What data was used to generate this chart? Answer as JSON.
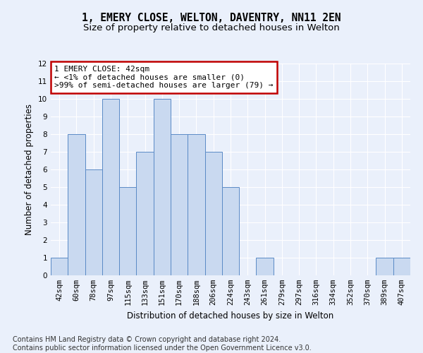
{
  "title_line1": "1, EMERY CLOSE, WELTON, DAVENTRY, NN11 2EN",
  "title_line2": "Size of property relative to detached houses in Welton",
  "xlabel": "Distribution of detached houses by size in Welton",
  "ylabel": "Number of detached properties",
  "categories": [
    "42sqm",
    "60sqm",
    "78sqm",
    "97sqm",
    "115sqm",
    "133sqm",
    "151sqm",
    "170sqm",
    "188sqm",
    "206sqm",
    "224sqm",
    "243sqm",
    "261sqm",
    "279sqm",
    "297sqm",
    "316sqm",
    "334sqm",
    "352sqm",
    "370sqm",
    "389sqm",
    "407sqm"
  ],
  "values": [
    1,
    8,
    6,
    10,
    5,
    7,
    10,
    8,
    8,
    7,
    5,
    0,
    1,
    0,
    0,
    0,
    0,
    0,
    0,
    1,
    1
  ],
  "bar_color": "#c9d9f0",
  "bar_edge_color": "#5a8ac6",
  "annotation_text": "1 EMERY CLOSE: 42sqm\n← <1% of detached houses are smaller (0)\n>99% of semi-detached houses are larger (79) →",
  "annotation_box_edge_color": "#c00000",
  "ylim": [
    0,
    12
  ],
  "yticks": [
    0,
    1,
    2,
    3,
    4,
    5,
    6,
    7,
    8,
    9,
    10,
    11,
    12
  ],
  "footer_line1": "Contains HM Land Registry data © Crown copyright and database right 2024.",
  "footer_line2": "Contains public sector information licensed under the Open Government Licence v3.0.",
  "title_fontsize": 10.5,
  "subtitle_fontsize": 9.5,
  "axis_label_fontsize": 8.5,
  "tick_fontsize": 7.5,
  "annotation_fontsize": 8,
  "footer_fontsize": 7,
  "background_color": "#eaf0fb",
  "plot_background_color": "#eaf0fb"
}
